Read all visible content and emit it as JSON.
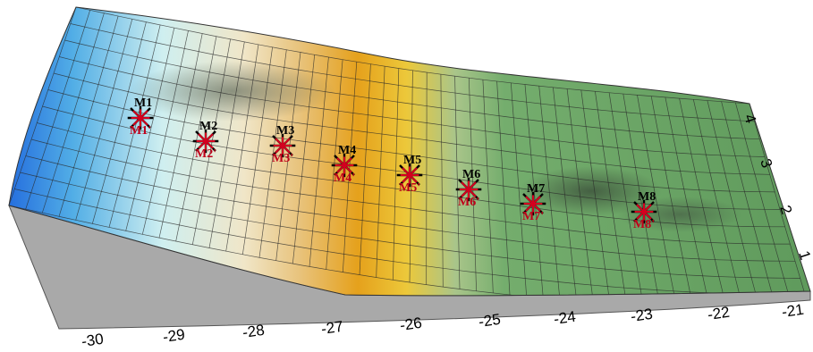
{
  "x_axis": {
    "ticks": [
      "-30",
      "-29",
      "-28",
      "-27",
      "-26",
      "-25",
      "-24",
      "-23",
      "-22",
      "-21"
    ]
  },
  "y_axis": {
    "ticks": [
      "4",
      "3",
      "2",
      "1"
    ]
  },
  "markers": [
    {
      "top": "M1",
      "bottom": "M1'"
    },
    {
      "top": "M2",
      "bottom": "M2'"
    },
    {
      "top": "M3",
      "bottom": "M3'"
    },
    {
      "top": "M4",
      "bottom": "M4'"
    },
    {
      "top": "M5",
      "bottom": "M5'"
    },
    {
      "top": "M6",
      "bottom": "M6'"
    },
    {
      "top": "M7",
      "bottom": "M7'"
    },
    {
      "top": "M8",
      "bottom": "M8'"
    }
  ],
  "colors": {
    "surface_low": "#1f6fe0",
    "surface_mid": "#e0f4f4",
    "surface_peak": "#e79a12",
    "surface_high": "#6fa86a",
    "side_wall": "#a9a9a9",
    "marker_top": "#000000",
    "marker_bottom": "#d4001f"
  }
}
